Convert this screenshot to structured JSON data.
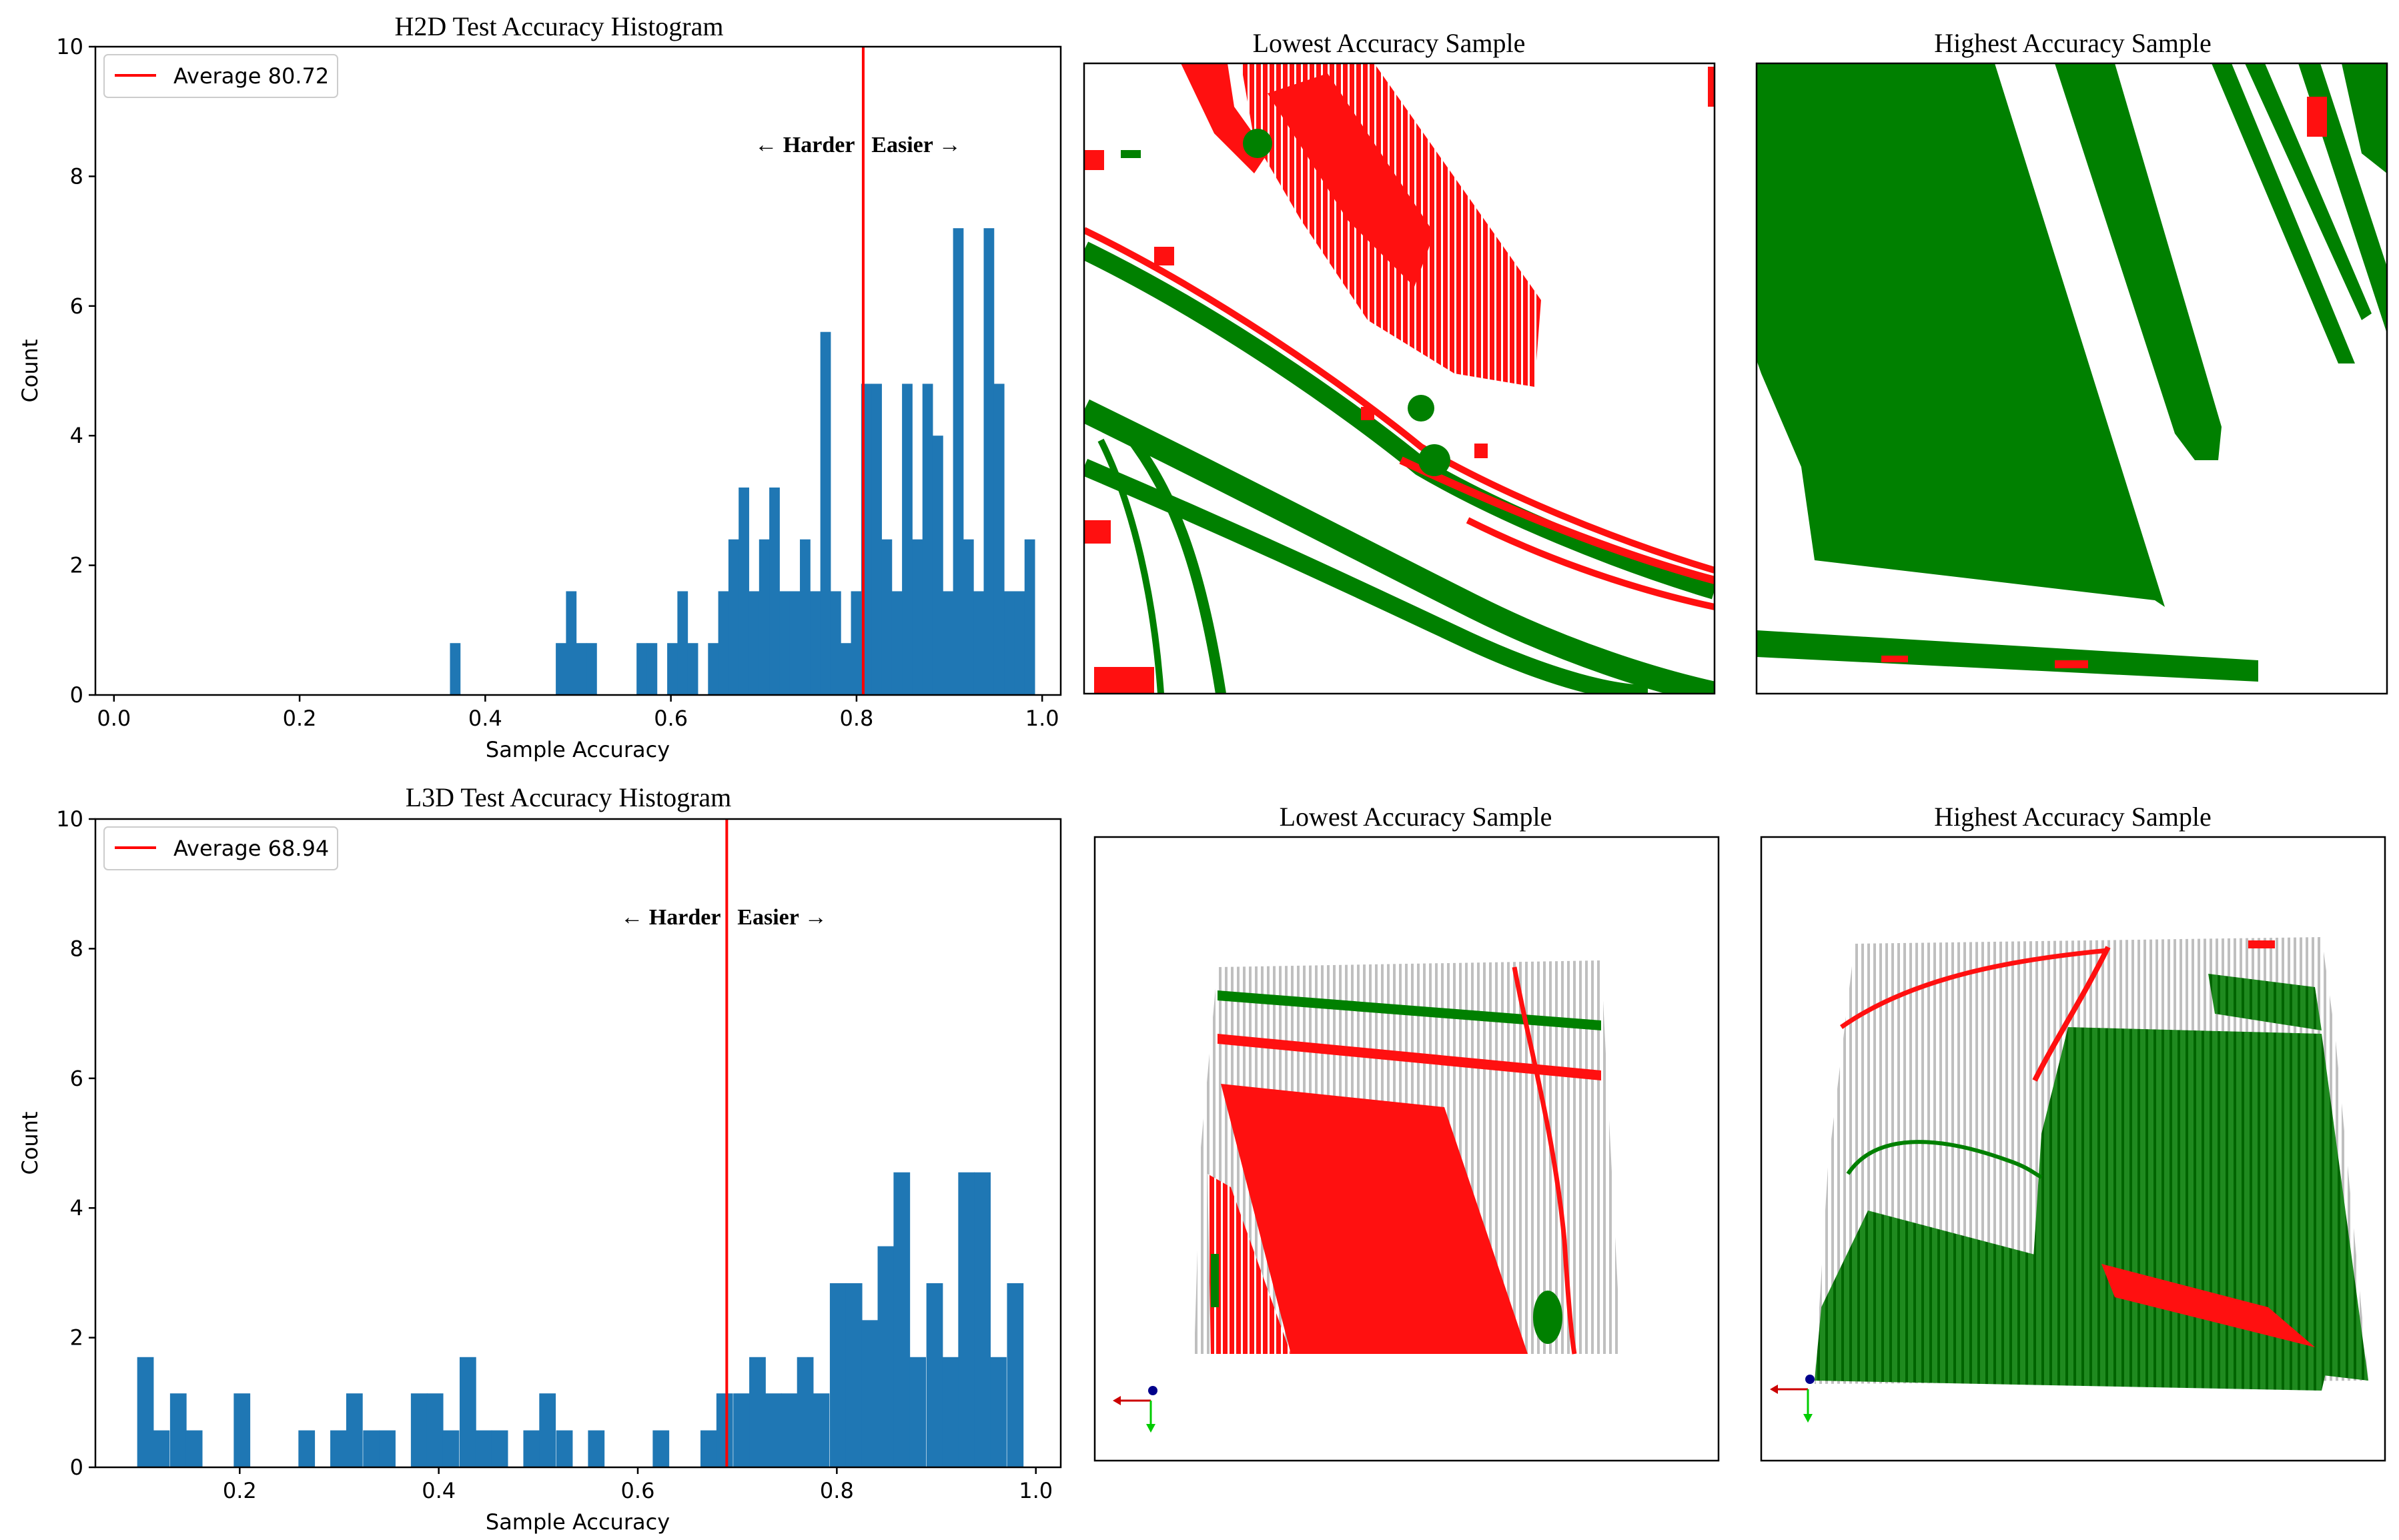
{
  "colors": {
    "bar": "#1f77b4",
    "mean_line": "#ff0000",
    "correct": "#008000",
    "wrong": "#ff0000",
    "cloud_gray": "#c8c8c8"
  },
  "chart_data": [
    {
      "type": "bar",
      "title": "H2D Test Accuracy Histogram",
      "xlabel": "Sample Accuracy",
      "ylabel": "Count",
      "xlim": [
        -0.02,
        1.02
      ],
      "ylim": [
        0,
        10
      ],
      "x_ticks": [
        "0.0",
        "0.2",
        "0.4",
        "0.6",
        "0.8",
        "1.0"
      ],
      "y_ticks": [
        "0",
        "2",
        "4",
        "6",
        "8",
        "10"
      ],
      "bin_width": 0.0109,
      "bins": [
        {
          "x": 0.362,
          "y": 0.8
        },
        {
          "x": 0.476,
          "y": 0.8
        },
        {
          "x": 0.487,
          "y": 1.6
        },
        {
          "x": 0.498,
          "y": 0.8
        },
        {
          "x": 0.509,
          "y": 0.8
        },
        {
          "x": 0.563,
          "y": 0.8
        },
        {
          "x": 0.574,
          "y": 0.8
        },
        {
          "x": 0.596,
          "y": 0.8
        },
        {
          "x": 0.607,
          "y": 1.6
        },
        {
          "x": 0.618,
          "y": 0.8
        },
        {
          "x": 0.64,
          "y": 0.8
        },
        {
          "x": 0.651,
          "y": 1.6
        },
        {
          "x": 0.662,
          "y": 2.4
        },
        {
          "x": 0.673,
          "y": 3.2
        },
        {
          "x": 0.684,
          "y": 1.6
        },
        {
          "x": 0.695,
          "y": 2.4
        },
        {
          "x": 0.706,
          "y": 3.2
        },
        {
          "x": 0.717,
          "y": 1.6
        },
        {
          "x": 0.728,
          "y": 1.6
        },
        {
          "x": 0.739,
          "y": 2.4
        },
        {
          "x": 0.75,
          "y": 1.6
        },
        {
          "x": 0.761,
          "y": 5.6
        },
        {
          "x": 0.772,
          "y": 1.6
        },
        {
          "x": 0.783,
          "y": 0.8
        },
        {
          "x": 0.794,
          "y": 1.6
        },
        {
          "x": 0.805,
          "y": 4.8
        },
        {
          "x": 0.816,
          "y": 4.8
        },
        {
          "x": 0.827,
          "y": 2.4
        },
        {
          "x": 0.838,
          "y": 1.6
        },
        {
          "x": 0.849,
          "y": 4.8
        },
        {
          "x": 0.86,
          "y": 2.4
        },
        {
          "x": 0.871,
          "y": 4.8
        },
        {
          "x": 0.882,
          "y": 4.0
        },
        {
          "x": 0.893,
          "y": 1.6
        },
        {
          "x": 0.904,
          "y": 7.2
        },
        {
          "x": 0.915,
          "y": 2.4
        },
        {
          "x": 0.926,
          "y": 1.6
        },
        {
          "x": 0.937,
          "y": 7.2
        },
        {
          "x": 0.948,
          "y": 4.8
        },
        {
          "x": 0.959,
          "y": 1.6
        },
        {
          "x": 0.97,
          "y": 1.6
        },
        {
          "x": 0.981,
          "y": 2.4
        }
      ],
      "average_x": 0.8072,
      "legend": "Average 80.72",
      "legend_position": "upper left",
      "annotation": "← Harder   Easier →"
    },
    {
      "type": "bar",
      "title": "L3D Test Accuracy Histogram",
      "xlabel": "Sample Accuracy",
      "ylabel": "Count",
      "xlim": [
        0.055,
        1.025
      ],
      "ylim": [
        0,
        10
      ],
      "x_ticks": [
        "0.2",
        "0.4",
        "0.6",
        "0.8",
        "1.0"
      ],
      "y_ticks": [
        "0",
        "2",
        "4",
        "6",
        "8",
        "10"
      ],
      "bin_width": 0.0162,
      "bins": [
        {
          "x": 0.097,
          "y": 1.7
        },
        {
          "x": 0.113,
          "y": 0.57
        },
        {
          "x": 0.13,
          "y": 1.14
        },
        {
          "x": 0.146,
          "y": 0.57
        },
        {
          "x": 0.194,
          "y": 1.14
        },
        {
          "x": 0.259,
          "y": 0.57
        },
        {
          "x": 0.291,
          "y": 0.57
        },
        {
          "x": 0.307,
          "y": 1.14
        },
        {
          "x": 0.324,
          "y": 0.57
        },
        {
          "x": 0.34,
          "y": 0.57
        },
        {
          "x": 0.372,
          "y": 1.14
        },
        {
          "x": 0.388,
          "y": 1.14
        },
        {
          "x": 0.404,
          "y": 0.57
        },
        {
          "x": 0.421,
          "y": 1.7
        },
        {
          "x": 0.437,
          "y": 0.57
        },
        {
          "x": 0.453,
          "y": 0.57
        },
        {
          "x": 0.485,
          "y": 0.57
        },
        {
          "x": 0.501,
          "y": 1.14
        },
        {
          "x": 0.518,
          "y": 0.57
        },
        {
          "x": 0.55,
          "y": 0.57
        },
        {
          "x": 0.615,
          "y": 0.57
        },
        {
          "x": 0.663,
          "y": 0.57
        },
        {
          "x": 0.679,
          "y": 1.14
        },
        {
          "x": 0.696,
          "y": 1.14
        },
        {
          "x": 0.712,
          "y": 1.7
        },
        {
          "x": 0.728,
          "y": 1.14
        },
        {
          "x": 0.744,
          "y": 1.14
        },
        {
          "x": 0.76,
          "y": 1.7
        },
        {
          "x": 0.776,
          "y": 1.14
        },
        {
          "x": 0.793,
          "y": 2.84
        },
        {
          "x": 0.809,
          "y": 2.84
        },
        {
          "x": 0.825,
          "y": 2.27
        },
        {
          "x": 0.841,
          "y": 3.41
        },
        {
          "x": 0.857,
          "y": 4.55
        },
        {
          "x": 0.873,
          "y": 1.7
        },
        {
          "x": 0.89,
          "y": 2.84
        },
        {
          "x": 0.906,
          "y": 1.7
        },
        {
          "x": 0.922,
          "y": 4.55
        },
        {
          "x": 0.938,
          "y": 4.55
        },
        {
          "x": 0.954,
          "y": 1.7
        },
        {
          "x": 0.971,
          "y": 2.84
        }
      ],
      "average_x": 0.6894,
      "legend": "Average 68.94",
      "legend_position": "upper left",
      "annotation": "← Harder   Easier →"
    }
  ],
  "panels": [
    {
      "title": "Lowest Accuracy Sample"
    },
    {
      "title": "Highest Accuracy Sample"
    },
    {
      "title": "Lowest Accuracy Sample"
    },
    {
      "title": "Highest Accuracy Sample"
    }
  ]
}
